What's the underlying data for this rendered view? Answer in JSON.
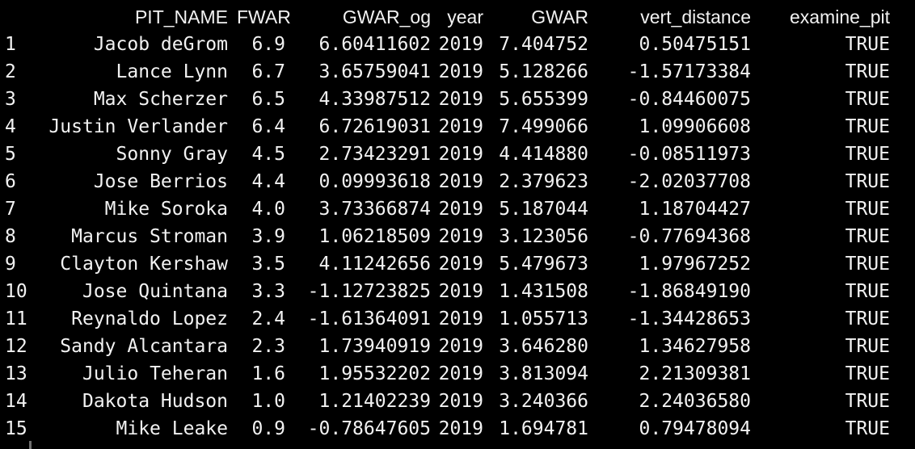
{
  "console": {
    "columns": [
      "PIT_NAME",
      "FWAR",
      "GWAR_og",
      "year",
      "GWAR",
      "vert_distance",
      "examine_pit"
    ],
    "rows": [
      {
        "idx": "1",
        "name": "Jacob deGrom",
        "fwar": "6.9",
        "gwar_og": "6.60411602",
        "year": "2019",
        "gwar": "7.404752",
        "vert": "0.50475151",
        "examine": "TRUE"
      },
      {
        "idx": "2",
        "name": "Lance Lynn",
        "fwar": "6.7",
        "gwar_og": "3.65759041",
        "year": "2019",
        "gwar": "5.128266",
        "vert": "-1.57173384",
        "examine": "TRUE"
      },
      {
        "idx": "3",
        "name": "Max Scherzer",
        "fwar": "6.5",
        "gwar_og": "4.33987512",
        "year": "2019",
        "gwar": "5.655399",
        "vert": "-0.84460075",
        "examine": "TRUE"
      },
      {
        "idx": "4",
        "name": "Justin Verlander",
        "fwar": "6.4",
        "gwar_og": "6.72619031",
        "year": "2019",
        "gwar": "7.499066",
        "vert": "1.09906608",
        "examine": "TRUE"
      },
      {
        "idx": "5",
        "name": "Sonny Gray",
        "fwar": "4.5",
        "gwar_og": "2.73423291",
        "year": "2019",
        "gwar": "4.414880",
        "vert": "-0.08511973",
        "examine": "TRUE"
      },
      {
        "idx": "6",
        "name": "Jose Berrios",
        "fwar": "4.4",
        "gwar_og": "0.09993618",
        "year": "2019",
        "gwar": "2.379623",
        "vert": "-2.02037708",
        "examine": "TRUE"
      },
      {
        "idx": "7",
        "name": "Mike Soroka",
        "fwar": "4.0",
        "gwar_og": "3.73366874",
        "year": "2019",
        "gwar": "5.187044",
        "vert": "1.18704427",
        "examine": "TRUE"
      },
      {
        "idx": "8",
        "name": "Marcus Stroman",
        "fwar": "3.9",
        "gwar_og": "1.06218509",
        "year": "2019",
        "gwar": "3.123056",
        "vert": "-0.77694368",
        "examine": "TRUE"
      },
      {
        "idx": "9",
        "name": "Clayton Kershaw",
        "fwar": "3.5",
        "gwar_og": "4.11242656",
        "year": "2019",
        "gwar": "5.479673",
        "vert": "1.97967252",
        "examine": "TRUE"
      },
      {
        "idx": "10",
        "name": "Jose Quintana",
        "fwar": "3.3",
        "gwar_og": "-1.12723825",
        "year": "2019",
        "gwar": "1.431508",
        "vert": "-1.86849190",
        "examine": "TRUE"
      },
      {
        "idx": "11",
        "name": "Reynaldo Lopez",
        "fwar": "2.4",
        "gwar_og": "-1.61364091",
        "year": "2019",
        "gwar": "1.055713",
        "vert": "-1.34428653",
        "examine": "TRUE"
      },
      {
        "idx": "12",
        "name": "Sandy Alcantara",
        "fwar": "2.3",
        "gwar_og": "1.73940919",
        "year": "2019",
        "gwar": "3.646280",
        "vert": "1.34627958",
        "examine": "TRUE"
      },
      {
        "idx": "13",
        "name": "Julio Teheran",
        "fwar": "1.6",
        "gwar_og": "1.95532202",
        "year": "2019",
        "gwar": "3.813094",
        "vert": "2.21309381",
        "examine": "TRUE"
      },
      {
        "idx": "14",
        "name": "Dakota Hudson",
        "fwar": "1.0",
        "gwar_og": "1.21402239",
        "year": "2019",
        "gwar": "3.240366",
        "vert": "2.24036580",
        "examine": "TRUE"
      },
      {
        "idx": "15",
        "name": "Mike Leake",
        "fwar": "0.9",
        "gwar_og": "-0.78647605",
        "year": "2019",
        "gwar": "1.694781",
        "vert": "0.79478094",
        "examine": "TRUE"
      }
    ]
  },
  "colors": {
    "background": "#000000",
    "text": "#f2f2f2",
    "prev_output_fragment": "#d0442c"
  }
}
